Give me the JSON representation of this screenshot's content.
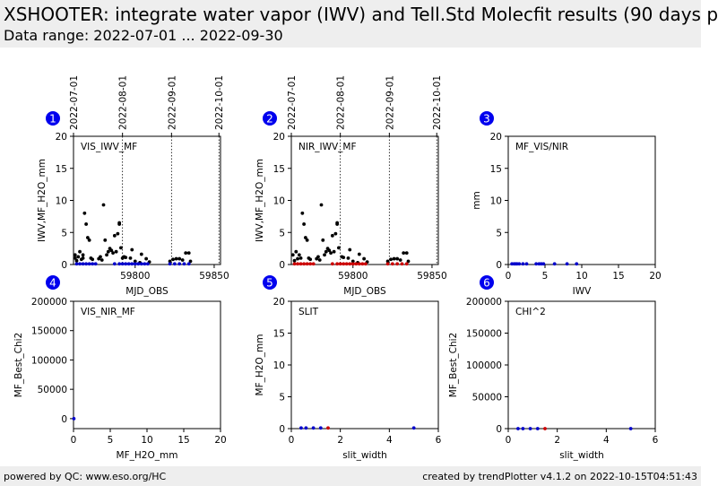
{
  "header": {
    "title": "XSHOOTER: integrate water vapor (IWV) and Tell.Std Molecfit results (90 days p",
    "subtitle": "Data range: 2022-07-01 ... 2022-09-30"
  },
  "footer": {
    "left": "powered by QC: www.eso.org/HC",
    "right": "created by trendPlotter v4.1.2 on 2022-10-15T04:51:43"
  },
  "colors": {
    "badge": "#0000ee",
    "black_points": "#000000",
    "blue_points": "#0000cc",
    "red_points": "#cc0000",
    "header_bg": "#eeeeee"
  },
  "chart_data": [
    {
      "id": "1",
      "type": "scatter",
      "title": "VIS_IWV_MF",
      "xlabel": "MJD_OBS",
      "ylabel": "IWV,MF_H2O_mm",
      "xlim": [
        59761,
        59854
      ],
      "ylim": [
        0,
        20
      ],
      "xticks": [
        59800,
        59850
      ],
      "yticks": [
        0,
        5,
        10,
        15,
        20
      ],
      "date_lines": [
        {
          "x": 59761,
          "label": "2022-07-01"
        },
        {
          "x": 59792,
          "label": "2022-08-01"
        },
        {
          "x": 59823,
          "label": "2022-09-01"
        },
        {
          "x": 59853,
          "label": "2022-10-01"
        }
      ],
      "series": [
        {
          "color": "black_points",
          "x": [
            59762,
            59762,
            59763,
            59764,
            59765,
            59766,
            59767,
            59767,
            59768,
            59769,
            59770,
            59771,
            59772,
            59773,
            59777,
            59778,
            59779,
            59780,
            59781,
            59782,
            59783,
            59784,
            59785,
            59786,
            59787,
            59788,
            59789,
            59790,
            59790,
            59791,
            59792,
            59793,
            59794,
            59797,
            59798,
            59800,
            59803,
            59804,
            59807,
            59809,
            59822,
            59824,
            59826,
            59828,
            59830,
            59832,
            59834,
            59835
          ],
          "y": [
            1.5,
            1.0,
            0.6,
            1.2,
            2.0,
            0.8,
            1.5,
            1.0,
            8.0,
            6.3,
            4.2,
            3.8,
            1.0,
            0.8,
            0.9,
            1.2,
            0.7,
            9.3,
            3.8,
            1.5,
            2.0,
            2.5,
            2.2,
            1.8,
            4.5,
            2.0,
            4.8,
            6.3,
            6.5,
            2.6,
            1.0,
            1.2,
            1.1,
            1.0,
            2.3,
            0.5,
            0.3,
            1.6,
            0.9,
            0.4,
            0.5,
            0.8,
            0.9,
            0.9,
            0.7,
            1.8,
            1.8,
            0.5
          ]
        },
        {
          "color": "blue_points",
          "x": [
            59763,
            59765,
            59767,
            59769,
            59771,
            59773,
            59775,
            59787,
            59790,
            59792,
            59794,
            59796,
            59798,
            59800,
            59802,
            59804,
            59806,
            59808,
            59822,
            59825,
            59828,
            59831,
            59834
          ],
          "y": [
            0.1,
            0.1,
            0.1,
            0.1,
            0.1,
            0.1,
            0.1,
            0.1,
            0.1,
            0.1,
            0.1,
            0.1,
            0.1,
            0.1,
            0.1,
            0.1,
            0.1,
            0.1,
            0.1,
            0.1,
            0.1,
            0.1,
            0.1
          ]
        }
      ]
    },
    {
      "id": "2",
      "type": "scatter",
      "title": "NIR_IWV_MF",
      "xlabel": "MJD_OBS",
      "ylabel": "IWV,MF_H2O_mm",
      "xlim": [
        59761,
        59854
      ],
      "ylim": [
        0,
        20
      ],
      "xticks": [
        59800,
        59850
      ],
      "yticks": [
        0,
        5,
        10,
        15,
        20
      ],
      "date_lines": [
        {
          "x": 59761,
          "label": "2022-07-01"
        },
        {
          "x": 59792,
          "label": "2022-08-01"
        },
        {
          "x": 59823,
          "label": "2022-09-01"
        },
        {
          "x": 59853,
          "label": "2022-10-01"
        }
      ],
      "series": [
        {
          "color": "black_points",
          "x": [
            59762,
            59763,
            59764,
            59765,
            59766,
            59767,
            59768,
            59769,
            59770,
            59771,
            59772,
            59773,
            59777,
            59778,
            59779,
            59780,
            59781,
            59782,
            59783,
            59784,
            59785,
            59786,
            59787,
            59788,
            59789,
            59790,
            59790,
            59791,
            59793,
            59794,
            59797,
            59798,
            59800,
            59803,
            59804,
            59807,
            59809,
            59822,
            59824,
            59826,
            59828,
            59830,
            59832,
            59834,
            59835
          ],
          "y": [
            1.5,
            0.6,
            2.0,
            0.9,
            1.5,
            1.0,
            8.0,
            6.3,
            4.2,
            3.8,
            1.0,
            0.8,
            0.9,
            1.2,
            0.7,
            9.3,
            3.8,
            1.5,
            2.0,
            2.5,
            2.2,
            1.8,
            4.5,
            2.0,
            4.8,
            6.3,
            6.5,
            2.6,
            1.2,
            1.1,
            1.0,
            2.3,
            0.5,
            0.3,
            1.6,
            0.9,
            0.4,
            0.5,
            0.8,
            0.9,
            0.9,
            0.7,
            1.8,
            1.8,
            0.5
          ]
        },
        {
          "color": "red_points",
          "x": [
            59763,
            59765,
            59767,
            59769,
            59771,
            59773,
            59775,
            59787,
            59790,
            59792,
            59794,
            59796,
            59798,
            59800,
            59802,
            59804,
            59806,
            59808,
            59822,
            59825,
            59828,
            59831,
            59834
          ],
          "y": [
            0.1,
            0.1,
            0.1,
            0.1,
            0.1,
            0.1,
            0.1,
            0.1,
            0.1,
            0.1,
            0.1,
            0.1,
            0.1,
            0.1,
            0.1,
            0.1,
            0.1,
            0.1,
            0.1,
            0.1,
            0.1,
            0.1,
            0.1
          ]
        }
      ]
    },
    {
      "id": "3",
      "type": "scatter",
      "title": "MF_VIS/NIR",
      "xlabel": "IWV",
      "ylabel": "mm",
      "xlim": [
        0,
        20
      ],
      "ylim": [
        0,
        20
      ],
      "xticks": [
        0,
        5,
        10,
        15,
        20
      ],
      "yticks": [
        0,
        5,
        10,
        15,
        20
      ],
      "series": [
        {
          "color": "blue_points",
          "x": [
            0.5,
            0.8,
            1.0,
            1.2,
            1.5,
            2.0,
            2.5,
            3.8,
            4.2,
            4.5,
            4.8,
            6.3,
            8.0,
            9.3
          ],
          "y": [
            0.1,
            0.1,
            0.1,
            0.1,
            0.1,
            0.1,
            0.1,
            0.1,
            0.1,
            0.1,
            0.1,
            0.1,
            0.1,
            0.1
          ]
        }
      ]
    },
    {
      "id": "4",
      "type": "scatter",
      "title": "VIS_NIR_MF",
      "xlabel": "MF_H2O_mm",
      "ylabel": "MF_Best_Chi2",
      "xlim": [
        0,
        20
      ],
      "ylim": [
        -17000,
        200000
      ],
      "xticks": [
        0,
        5,
        10,
        15,
        20
      ],
      "yticks": [
        0,
        50000,
        100000,
        150000,
        200000
      ],
      "series": [
        {
          "color": "blue_points",
          "x": [
            0.05
          ],
          "y": [
            0
          ]
        }
      ]
    },
    {
      "id": "5",
      "type": "scatter",
      "title": "SLIT",
      "xlabel": "slit_width",
      "ylabel": "MF_H2O_mm",
      "xlim": [
        0,
        6
      ],
      "ylim": [
        0,
        20
      ],
      "xticks": [
        0,
        2,
        4,
        6
      ],
      "yticks": [
        0,
        5,
        10,
        15,
        20
      ],
      "series": [
        {
          "color": "blue_points",
          "x": [
            0.4,
            0.6,
            0.9,
            1.2,
            5.0
          ],
          "y": [
            0.1,
            0.1,
            0.1,
            0.1,
            0.1
          ]
        },
        {
          "color": "red_points",
          "x": [
            1.5
          ],
          "y": [
            0.1
          ]
        }
      ]
    },
    {
      "id": "6",
      "type": "scatter",
      "title": "CHI^2",
      "xlabel": "slit_width",
      "ylabel": "MF_Best_Chi2",
      "xlim": [
        0,
        6
      ],
      "ylim": [
        0,
        200000
      ],
      "xticks": [
        0,
        2,
        4,
        6
      ],
      "yticks": [
        0,
        50000,
        100000,
        150000,
        200000
      ],
      "series": [
        {
          "color": "blue_points",
          "x": [
            0.4,
            0.6,
            0.9,
            1.2,
            5.0
          ],
          "y": [
            0,
            0,
            0,
            0,
            0
          ]
        },
        {
          "color": "red_points",
          "x": [
            1.5
          ],
          "y": [
            0
          ]
        }
      ]
    }
  ]
}
